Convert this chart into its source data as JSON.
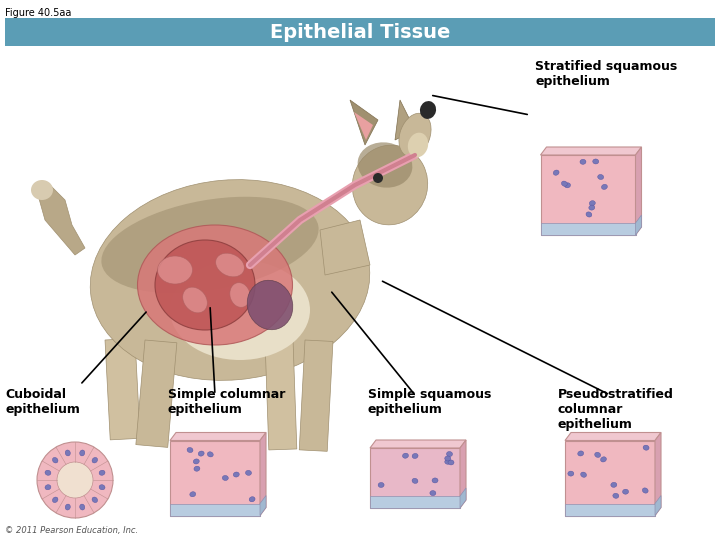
{
  "figure_label": "Figure 40.5aa",
  "title": "Epithelial Tissue",
  "title_bg_color": "#5b9db5",
  "title_text_color": "#ffffff",
  "background_color": "#ffffff",
  "labels": {
    "stratified_squamous": "Stratified squamous\nepithelium",
    "cuboidal": "Cuboidal\nepithelium",
    "simple_columnar": "Simple columnar\nepithelium",
    "simple_squamous": "Simple squamous\nepithelium",
    "pseudostratified": "Pseudostratified\ncolumnar\nepithelium"
  },
  "copyright": "© 2011 Pearson Education, Inc.",
  "font_size_title": 14,
  "font_size_label": 9,
  "font_size_figure": 7,
  "font_size_copyright": 6
}
